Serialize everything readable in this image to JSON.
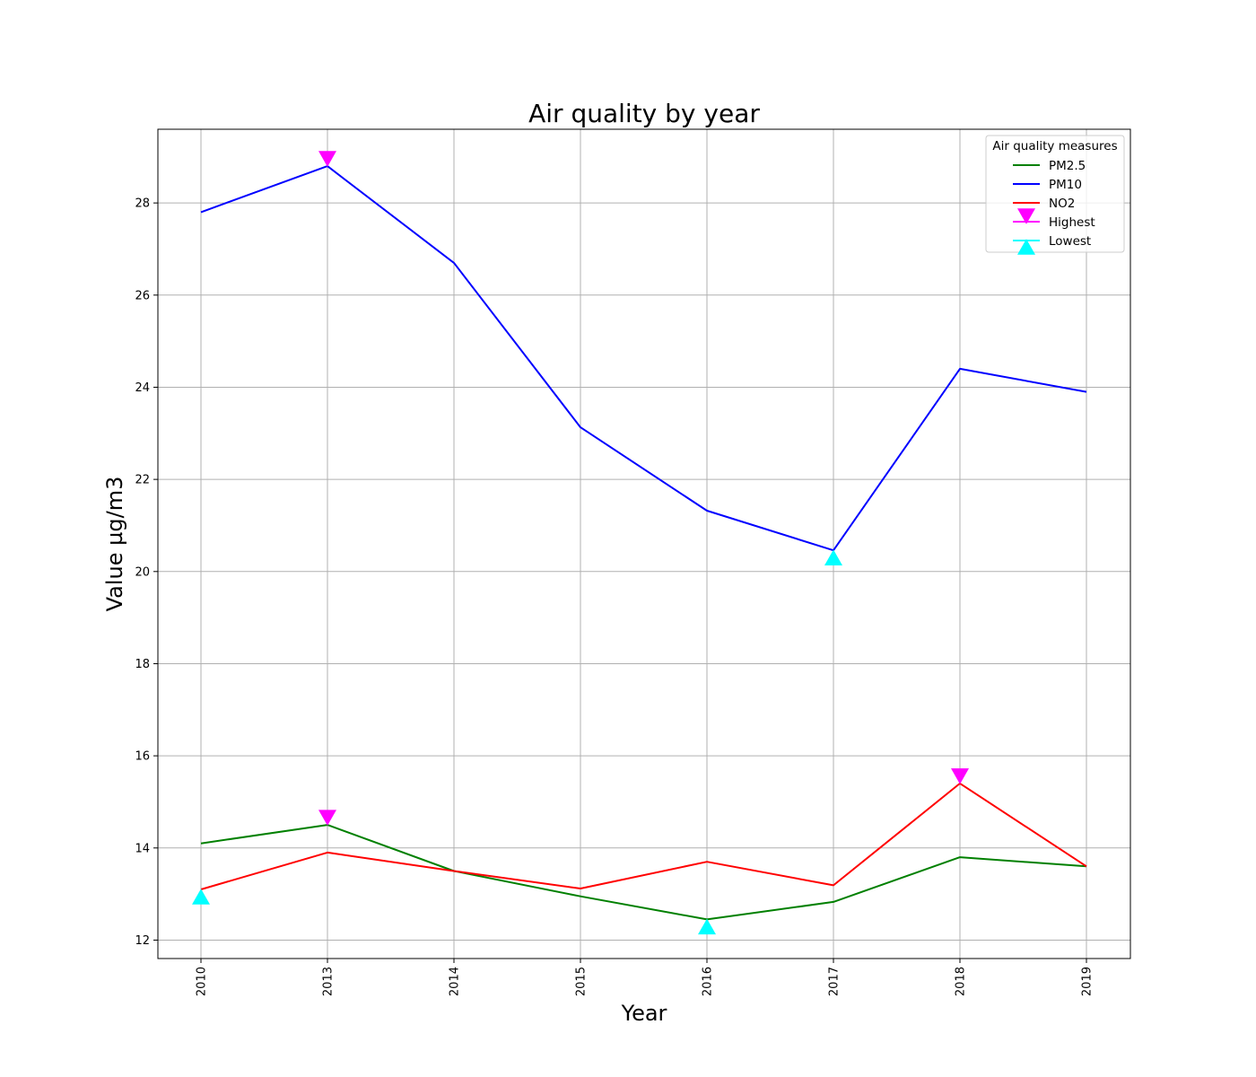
{
  "chart_data": {
    "type": "line",
    "title": "Air quality by year",
    "xlabel": "Year",
    "ylabel": "Value µg/m3",
    "categories": [
      "2010",
      "2013",
      "2014",
      "2015",
      "2016",
      "2017",
      "2018",
      "2019"
    ],
    "ylim": [
      11.6,
      29.6
    ],
    "yticks": [
      12,
      14,
      16,
      18,
      20,
      22,
      24,
      26,
      28
    ],
    "grid": true,
    "legend": {
      "title": "Air quality measures",
      "placement": "top-right"
    },
    "series": [
      {
        "name": "PM2.5",
        "color": "#008000",
        "values": [
          14.1,
          14.5,
          13.5,
          12.95,
          12.45,
          12.83,
          13.8,
          13.6
        ]
      },
      {
        "name": "PM10",
        "color": "#0000ff",
        "values": [
          27.8,
          28.8,
          26.7,
          23.13,
          21.32,
          20.46,
          24.4,
          23.9
        ]
      },
      {
        "name": "NO2",
        "color": "#ff0000",
        "values": [
          13.1,
          13.9,
          13.5,
          13.12,
          13.7,
          13.19,
          15.4,
          13.6
        ]
      }
    ],
    "markers": [
      {
        "name": "Highest",
        "shape": "triangle-down",
        "color": "#ff00ff",
        "points": [
          {
            "x": "2013",
            "y": 28.8
          },
          {
            "x": "2013",
            "y": 14.5
          },
          {
            "x": "2018",
            "y": 15.4
          }
        ]
      },
      {
        "name": "Lowest",
        "shape": "triangle-up",
        "color": "#00ffff",
        "points": [
          {
            "x": "2017",
            "y": 20.46
          },
          {
            "x": "2016",
            "y": 12.45
          },
          {
            "x": "2010",
            "y": 13.1
          }
        ]
      }
    ]
  }
}
